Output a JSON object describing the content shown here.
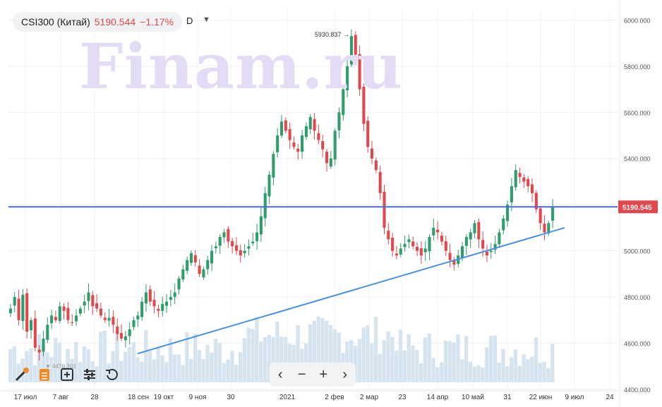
{
  "header": {
    "symbol": "CSI300 (Китай)",
    "price": "5190.544",
    "change": "−1.17%",
    "interval": "D"
  },
  "watermark": "Finam.ru",
  "colors": {
    "up": "#2e9c6b",
    "down": "#e0484d",
    "volume": "#d6e4f0",
    "price_line": "#4a6bd6",
    "trendline": "#4a90e2"
  },
  "chart_data": {
    "type": "candlestick",
    "ylim": [
      4400,
      6050
    ],
    "y_ticks": [
      "6000.000",
      "5800.000",
      "5600.000",
      "5400.000",
      "5200.000",
      "5000.000",
      "4800.000",
      "4600.000",
      "4400.000"
    ],
    "x_ticks": [
      "17 июл",
      "7 авг",
      "28",
      "18 сен",
      "19 окт",
      "9 ноя",
      "30",
      "2021",
      "2 фев",
      "2 мар",
      "23",
      "14 апр",
      "10 май",
      "31",
      "22 июн",
      "9 июл",
      "24"
    ],
    "last_price_label": "5190.545",
    "last_price": 5190.545,
    "high_label": "5930.837",
    "high_value": 5930.837,
    "low_label": "4470.303",
    "low_value": 4470.303,
    "trendline": {
      "from": [
        0,
        4555
      ],
      "to": [
        128,
        5100
      ]
    },
    "closes": [
      4750,
      4800,
      4700,
      4810,
      4650,
      4700,
      4580,
      4560,
      4620,
      4680,
      4720,
      4700,
      4760,
      4740,
      4700,
      4690,
      4720,
      4750,
      4780,
      4820,
      4760,
      4750,
      4720,
      4700,
      4710,
      4680,
      4640,
      4620,
      4630,
      4660,
      4700,
      4720,
      4780,
      4820,
      4780,
      4760,
      4740,
      4770,
      4780,
      4800,
      4820,
      4880,
      4920,
      4960,
      4990,
      4950,
      4900,
      4920,
      4960,
      5000,
      5020,
      5060,
      5080,
      5040,
      5020,
      5000,
      4980,
      5000,
      5020,
      5040,
      5080,
      5150,
      5250,
      5330,
      5420,
      5500,
      5560,
      5520,
      5480,
      5450,
      5430,
      5500,
      5540,
      5580,
      5520,
      5480,
      5440,
      5380,
      5400,
      5520,
      5600,
      5700,
      5800,
      5930,
      5850,
      5700,
      5550,
      5450,
      5400,
      5350,
      5250,
      5100,
      5050,
      5000,
      4980,
      5010,
      5030,
      5050,
      5020,
      5000,
      4980,
      5010,
      5060,
      5100,
      5080,
      5040,
      5000,
      4960,
      4940,
      4980,
      5020,
      5060,
      5080,
      5120,
      5050,
      5010,
      4980,
      5000,
      5030,
      5080,
      5140,
      5200,
      5280,
      5350,
      5320,
      5300,
      5280,
      5250,
      5180,
      5120,
      5080,
      5120,
      5190
    ]
  }
}
